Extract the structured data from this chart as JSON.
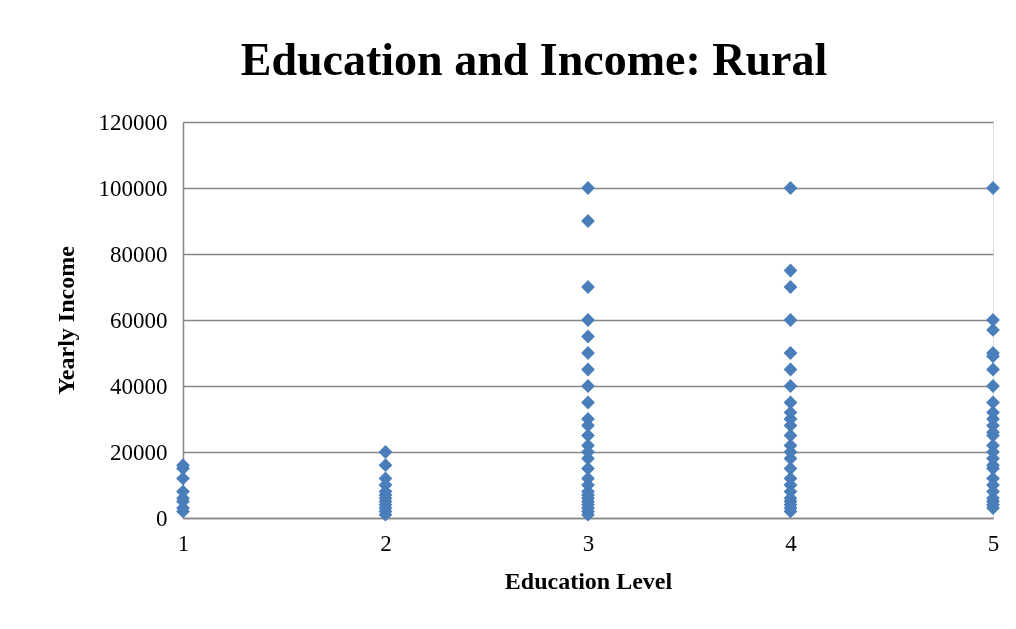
{
  "chart_data": {
    "type": "scatter",
    "title": "Education and Income: Rural",
    "xlabel": "Education Level",
    "ylabel": "Yearly Income",
    "x": [
      1,
      1,
      1,
      1,
      1,
      1,
      1,
      1,
      2,
      2,
      2,
      2,
      2,
      2,
      2,
      2,
      2,
      2,
      2,
      2,
      3,
      3,
      3,
      3,
      3,
      3,
      3,
      3,
      3,
      3,
      3,
      3,
      3,
      3,
      3,
      3,
      3,
      3,
      3,
      3,
      3,
      3,
      3,
      3,
      3,
      3,
      4,
      4,
      4,
      4,
      4,
      4,
      4,
      4,
      4,
      4,
      4,
      4,
      4,
      4,
      4,
      4,
      4,
      4,
      4,
      4,
      4,
      4,
      4,
      4,
      5,
      5,
      5,
      5,
      5,
      5,
      5,
      5,
      5,
      5,
      5,
      5,
      5,
      5,
      5,
      5,
      5,
      5,
      5,
      5,
      5,
      5,
      5,
      5,
      5
    ],
    "values": [
      16000,
      15000,
      12000,
      8000,
      6000,
      5000,
      3000,
      2000,
      20000,
      16000,
      12000,
      10000,
      8000,
      7000,
      6000,
      5000,
      4000,
      3000,
      2000,
      1000,
      100000,
      90000,
      70000,
      60000,
      55000,
      50000,
      45000,
      40000,
      35000,
      30000,
      28000,
      25000,
      22000,
      20000,
      18000,
      15000,
      12000,
      10000,
      8000,
      7000,
      6000,
      5000,
      4000,
      3000,
      2000,
      1000,
      100000,
      75000,
      70000,
      60000,
      50000,
      45000,
      40000,
      35000,
      32000,
      30000,
      28000,
      25000,
      22000,
      20000,
      18000,
      15000,
      12000,
      10000,
      8000,
      6000,
      5000,
      4000,
      3000,
      2000,
      100000,
      60000,
      57000,
      50000,
      49000,
      45000,
      40000,
      35000,
      32000,
      30000,
      28000,
      26000,
      25000,
      22000,
      20000,
      18000,
      16000,
      15000,
      12000,
      10000,
      8000,
      6000,
      5000,
      4000,
      3000
    ],
    "color": "#4a7ebb",
    "marker": "diamond",
    "xlim": [
      1,
      5
    ],
    "xticks": [
      1,
      2,
      3,
      4,
      5
    ],
    "ylim": [
      0,
      120000
    ],
    "yticks": [
      0,
      20000,
      40000,
      60000,
      80000,
      100000,
      120000
    ],
    "grid": "y"
  }
}
